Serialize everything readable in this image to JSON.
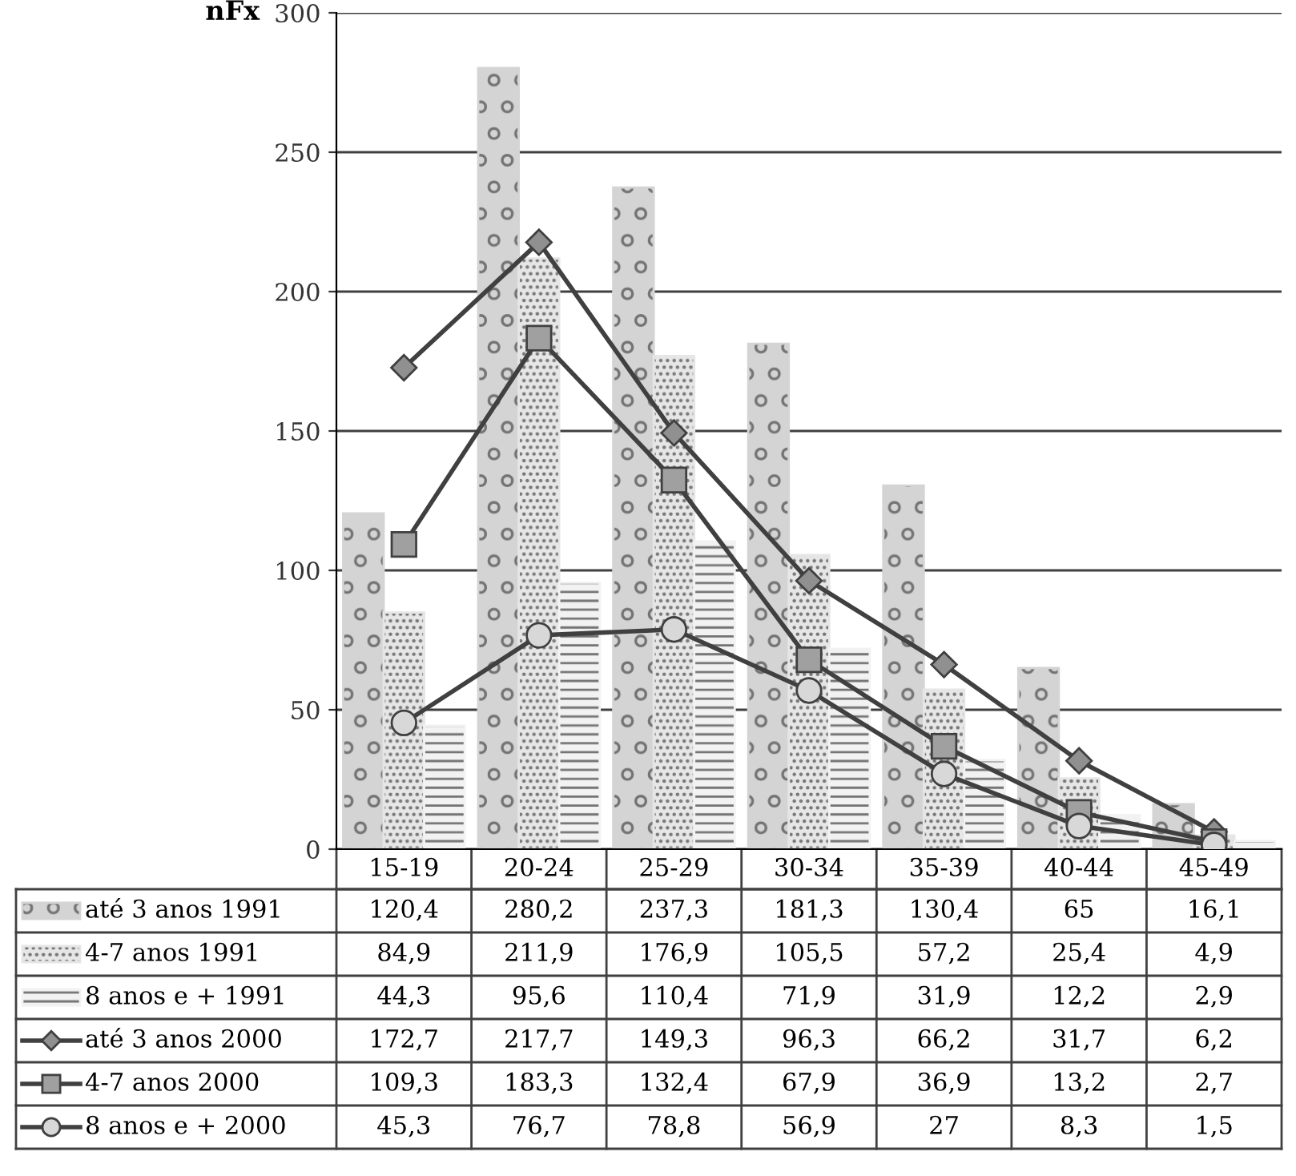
{
  "chart_data": {
    "type": "bar",
    "ylabel": "nFx",
    "categories": [
      "15-19",
      "20-24",
      "25-29",
      "30-34",
      "35-39",
      "40-44",
      "45-49"
    ],
    "series": [
      {
        "name": "até 3 anos 1991",
        "color": "#d4d4d4",
        "values": [
          120.4,
          280.2,
          237.3,
          181.3,
          130.4,
          65,
          16.1
        ],
        "value_labels": [
          "120,4",
          "280,2",
          "237,3",
          "181,3",
          "130,4",
          "65",
          "16,1"
        ]
      },
      {
        "name": "4-7 anos 1991",
        "color": "#e6e6e6",
        "values": [
          84.9,
          211.9,
          176.9,
          105.5,
          57.2,
          25.4,
          4.9
        ],
        "value_labels": [
          "84,9",
          "211,9",
          "176,9",
          "105,5",
          "57,2",
          "25,4",
          "4,9"
        ]
      },
      {
        "name": "8 anos e + 1991",
        "color": "#f2f2f2",
        "values": [
          44.3,
          95.6,
          110.4,
          71.9,
          31.9,
          12.2,
          2.9
        ],
        "value_labels": [
          "44,3",
          "95,6",
          "110,4",
          "71,9",
          "31,9",
          "12,2",
          "2,9"
        ]
      },
      {
        "name": "até 3 anos 2000",
        "type": "line",
        "color": "#404040",
        "marker": "diamond",
        "values": [
          172.7,
          217.7,
          149.3,
          96.3,
          66.2,
          31.7,
          6.2
        ],
        "value_labels": [
          "172,7",
          "217,7",
          "149,3",
          "96,3",
          "66,2",
          "31,7",
          "6,2"
        ]
      },
      {
        "name": "4-7 anos 2000",
        "type": "line",
        "color": "#404040",
        "marker": "square",
        "values": [
          109.3,
          183.3,
          132.4,
          67.9,
          36.9,
          13.2,
          2.7
        ],
        "value_labels": [
          "109,3",
          "183,3",
          "132,4",
          "67,9",
          "36,9",
          "13,2",
          "2,7"
        ]
      },
      {
        "name": "8 anos e + 2000",
        "type": "line",
        "color": "#404040",
        "marker": "circle",
        "values": [
          45.3,
          76.7,
          78.8,
          56.9,
          27,
          8.3,
          1.5
        ],
        "value_labels": [
          "45,3",
          "76,7",
          "78,8",
          "56,9",
          "27",
          "8,3",
          "1,5"
        ]
      }
    ],
    "ylim": [
      0,
      300
    ],
    "yticks": [
      0,
      50,
      100,
      150,
      200,
      250,
      300
    ],
    "grid": "y",
    "legend": "bottom",
    "line_style": "solid"
  }
}
